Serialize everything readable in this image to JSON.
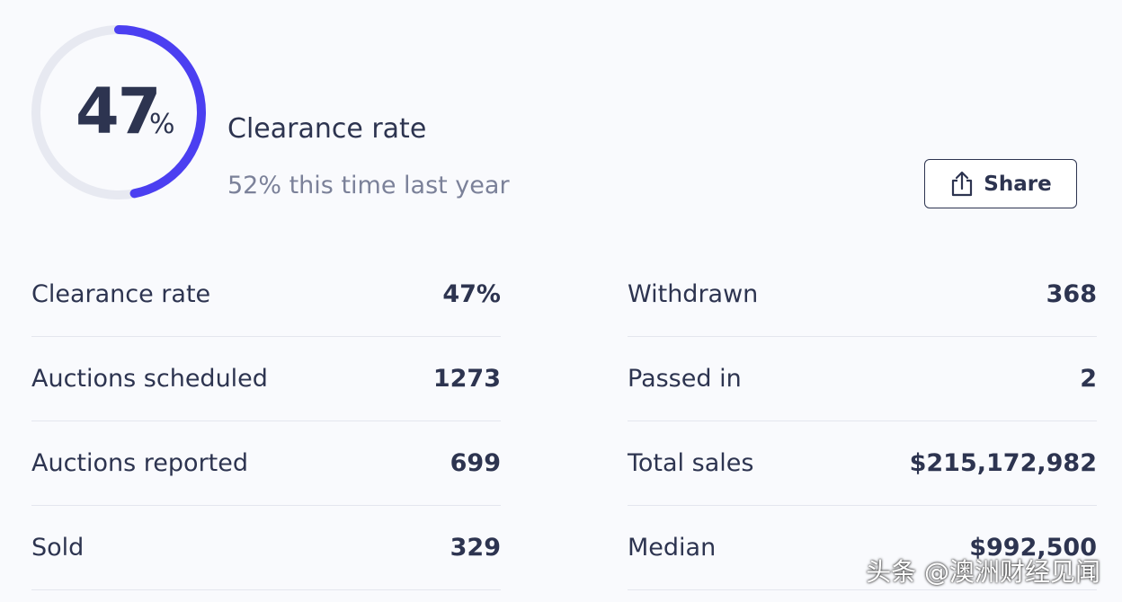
{
  "gauge": {
    "value": 47,
    "unit": "%"
  },
  "header": {
    "title": "Clearance rate",
    "subtitle": "52% this time last year"
  },
  "share_button": {
    "label": "Share"
  },
  "stats": {
    "left": [
      {
        "label": "Clearance rate",
        "value": "47%"
      },
      {
        "label": "Auctions scheduled",
        "value": "1273"
      },
      {
        "label": "Auctions reported",
        "value": "699"
      },
      {
        "label": "Sold",
        "value": "329"
      }
    ],
    "right": [
      {
        "label": "Withdrawn",
        "value": "368"
      },
      {
        "label": "Passed in",
        "value": "2"
      },
      {
        "label": "Total sales",
        "value": "$215,172,982"
      },
      {
        "label": "Median",
        "value": "$992,500"
      }
    ]
  },
  "watermark": "头条 @澳洲财经见闻"
}
